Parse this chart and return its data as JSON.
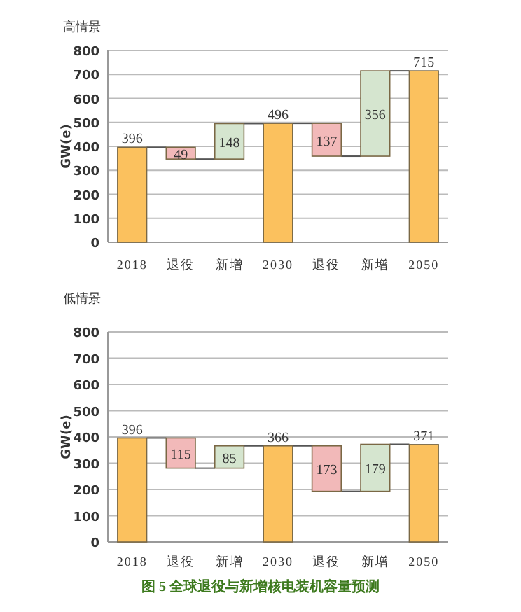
{
  "chart_data": [
    {
      "type": "bar",
      "title": "高情景",
      "ylabel": "GW(e)",
      "categories": [
        "2018",
        "退役",
        "新增",
        "2030",
        "退役",
        "新增",
        "2050"
      ],
      "values": [
        396,
        49,
        148,
        496,
        137,
        356,
        715
      ],
      "base": [
        0,
        347,
        347,
        0,
        359,
        359,
        0
      ],
      "colors": [
        "#fbc15e",
        "#f2b9b9",
        "#d5e5cf",
        "#fbc15e",
        "#f2b9b9",
        "#d5e5cf",
        "#fbc15e"
      ],
      "ylim": [
        0,
        800
      ],
      "yticks": [
        0,
        100,
        200,
        300,
        400,
        500,
        600,
        700,
        800
      ],
      "grid": "y",
      "data_labels": true
    },
    {
      "type": "bar",
      "title": "低情景",
      "ylabel": "GW(e)",
      "categories": [
        "2018",
        "退役",
        "新增",
        "2030",
        "退役",
        "新增",
        "2050"
      ],
      "values": [
        396,
        115,
        85,
        366,
        173,
        179,
        371
      ],
      "base": [
        0,
        281,
        281,
        0,
        193,
        193,
        0
      ],
      "colors": [
        "#fbc15e",
        "#f2b9b9",
        "#d5e5cf",
        "#fbc15e",
        "#f2b9b9",
        "#d5e5cf",
        "#fbc15e"
      ],
      "ylim": [
        0,
        800
      ],
      "yticks": [
        0,
        100,
        200,
        300,
        400,
        500,
        600,
        700,
        800
      ],
      "grid": "y",
      "data_labels": true,
      "annotations": [
        "图 5  全球退役与新增核电装机容量预测"
      ]
    }
  ]
}
